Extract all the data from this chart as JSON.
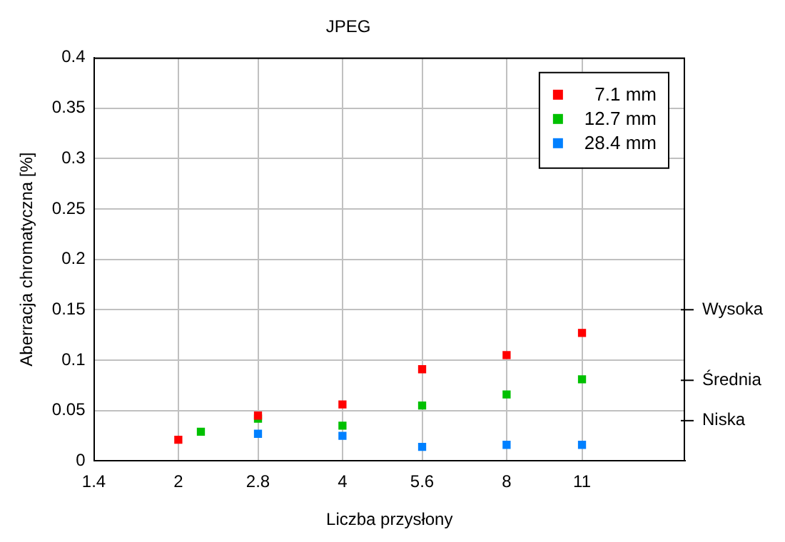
{
  "chart_data": {
    "type": "scatter",
    "title": "JPEG",
    "xlabel": "Liczba przysłony",
    "ylabel": "Aberracja chromatyczna [%]",
    "log": "x",
    "xlim": [
      1.4,
      17
    ],
    "xticks": [
      1.4,
      2,
      2.8,
      4,
      5.6,
      8,
      11
    ],
    "ylim": [
      0,
      0.4
    ],
    "yticks": [
      0,
      0.05,
      0.1,
      0.15,
      0.2,
      0.25,
      0.3,
      0.35,
      0.4
    ],
    "ref_lines": [
      {
        "axis": "y",
        "value": 0.15,
        "label": "Wysoka"
      },
      {
        "axis": "y",
        "value": 0.08,
        "label": "Średnia"
      },
      {
        "axis": "y",
        "value": 0.04,
        "label": "Niska"
      }
    ],
    "grid": true,
    "legend": "top right",
    "marker": "square",
    "series": [
      {
        "name": "7.1 mm",
        "color": "#ff0000",
        "x": [
          2,
          2.8,
          4,
          5.6,
          8,
          11
        ],
        "values": [
          0.021,
          0.045,
          0.056,
          0.091,
          0.105,
          0.127
        ]
      },
      {
        "name": "12.7 mm",
        "color": "#00c000",
        "x": [
          2.2,
          2.8,
          4,
          5.6,
          8,
          11
        ],
        "values": [
          0.029,
          0.042,
          0.035,
          0.055,
          0.066,
          0.081
        ]
      },
      {
        "name": "28.4 mm",
        "color": "#0080ff",
        "x": [
          2.8,
          4,
          5.6,
          8,
          11
        ],
        "values": [
          0.027,
          0.025,
          0.014,
          0.016,
          0.016
        ]
      }
    ]
  }
}
